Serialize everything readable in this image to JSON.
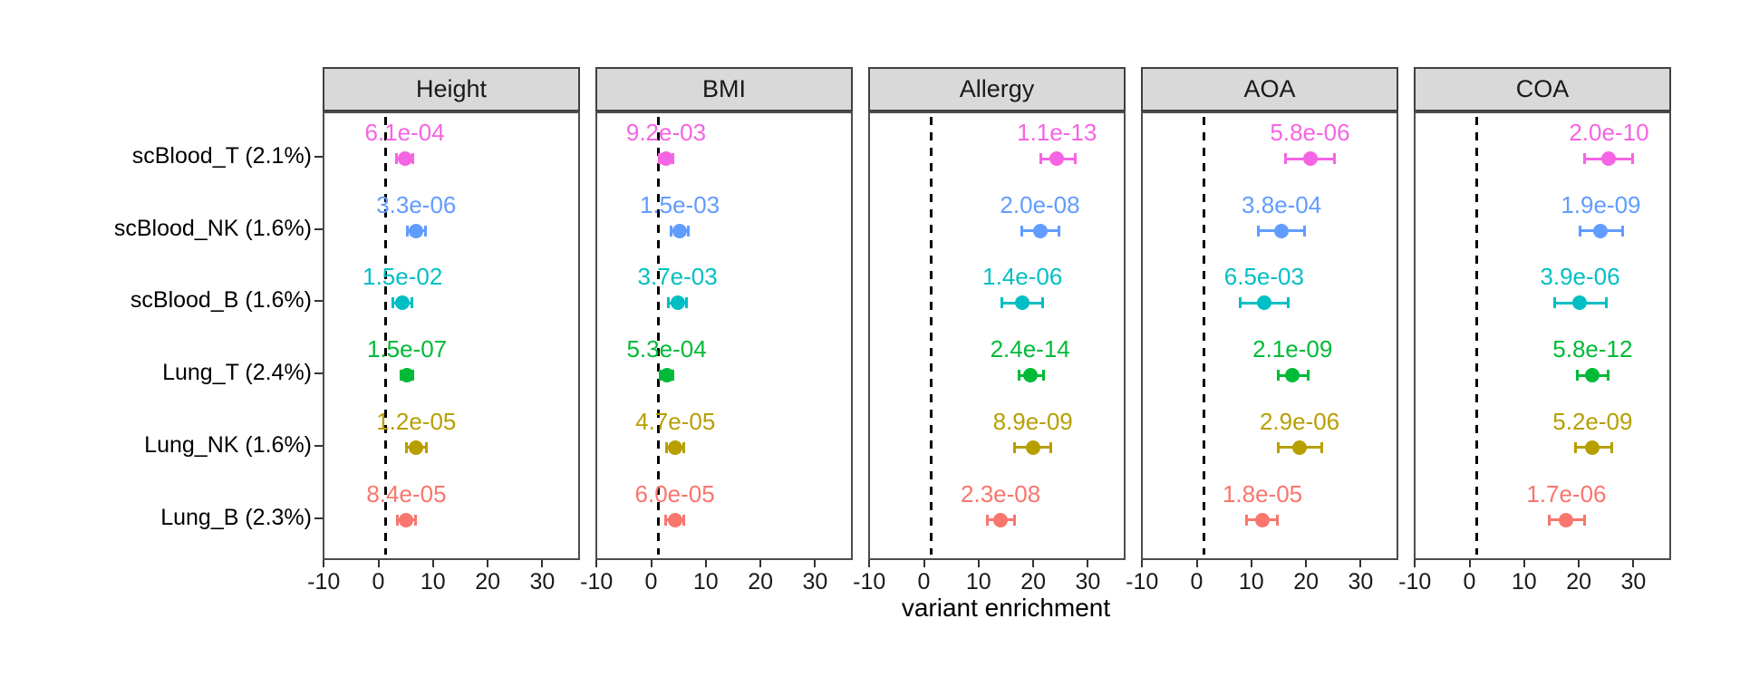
{
  "chart_data": {
    "type": "scatter",
    "title": "",
    "xlabel": "variant enrichment",
    "ylabel": "",
    "x_ticks": [
      -10,
      0,
      10,
      20,
      30
    ],
    "x_range": [
      -10.2,
      36.9
    ],
    "baseline_x": 1,
    "grid": false,
    "legend_position": "none",
    "facets": [
      "Height",
      "BMI",
      "Allergy",
      "AOA",
      "COA"
    ],
    "rows": [
      {
        "label": "scBlood_T (2.1%)",
        "color": "#F564E3"
      },
      {
        "label": "scBlood_NK (1.6%)",
        "color": "#619CFF"
      },
      {
        "label": "scBlood_B (1.6%)",
        "color": "#00BFC4"
      },
      {
        "label": "Lung_T (2.4%)",
        "color": "#00BA38"
      },
      {
        "label": "Lung_NK (1.6%)",
        "color": "#B79F00"
      },
      {
        "label": "Lung_B (2.3%)",
        "color": "#F8766D"
      }
    ],
    "panels": [
      {
        "title": "Height",
        "points": [
          {
            "est": 4.5,
            "lo": 3.0,
            "hi": 6.0,
            "pvalue": "6.1e-04"
          },
          {
            "est": 6.6,
            "lo": 4.9,
            "hi": 8.3,
            "pvalue": "3.3e-06"
          },
          {
            "est": 4.1,
            "lo": 2.4,
            "hi": 5.8,
            "pvalue": "1.5e-02"
          },
          {
            "est": 4.9,
            "lo": 3.8,
            "hi": 6.0,
            "pvalue": "1.5e-07"
          },
          {
            "est": 6.6,
            "lo": 4.8,
            "hi": 8.4,
            "pvalue": "1.2e-05"
          },
          {
            "est": 4.8,
            "lo": 3.2,
            "hi": 6.4,
            "pvalue": "8.4e-05"
          }
        ]
      },
      {
        "title": "BMI",
        "points": [
          {
            "est": 2.4,
            "lo": 1.2,
            "hi": 3.6,
            "pvalue": "9.2e-03"
          },
          {
            "est": 4.9,
            "lo": 3.3,
            "hi": 6.5,
            "pvalue": "1.5e-03"
          },
          {
            "est": 4.5,
            "lo": 2.8,
            "hi": 6.2,
            "pvalue": "3.7e-03"
          },
          {
            "est": 2.5,
            "lo": 1.4,
            "hi": 3.6,
            "pvalue": "5.3e-04"
          },
          {
            "est": 4.1,
            "lo": 2.5,
            "hi": 5.7,
            "pvalue": "4.7e-05"
          },
          {
            "est": 4.0,
            "lo": 2.4,
            "hi": 5.6,
            "pvalue": "6.0e-05"
          }
        ]
      },
      {
        "title": "Allergy",
        "points": [
          {
            "est": 24.0,
            "lo": 21.0,
            "hi": 27.3,
            "pvalue": "1.1e-13"
          },
          {
            "est": 20.9,
            "lo": 17.5,
            "hi": 24.4,
            "pvalue": "2.0e-08"
          },
          {
            "est": 17.7,
            "lo": 14.0,
            "hi": 21.4,
            "pvalue": "1.4e-06"
          },
          {
            "est": 19.1,
            "lo": 17.1,
            "hi": 21.5,
            "pvalue": "2.4e-14"
          },
          {
            "est": 19.6,
            "lo": 16.3,
            "hi": 22.9,
            "pvalue": "8.9e-09"
          },
          {
            "est": 13.7,
            "lo": 11.2,
            "hi": 16.2,
            "pvalue": "2.3e-08"
          }
        ]
      },
      {
        "title": "AOA",
        "points": [
          {
            "est": 20.4,
            "lo": 16.0,
            "hi": 24.8,
            "pvalue": "5.8e-06"
          },
          {
            "est": 15.2,
            "lo": 10.9,
            "hi": 19.4,
            "pvalue": "3.8e-04"
          },
          {
            "est": 12.0,
            "lo": 7.7,
            "hi": 16.5,
            "pvalue": "6.5e-03"
          },
          {
            "est": 17.2,
            "lo": 14.6,
            "hi": 20.0,
            "pvalue": "2.1e-09"
          },
          {
            "est": 18.5,
            "lo": 14.6,
            "hi": 22.5,
            "pvalue": "2.9e-06"
          },
          {
            "est": 11.7,
            "lo": 8.8,
            "hi": 14.5,
            "pvalue": "1.8e-05"
          }
        ]
      },
      {
        "title": "COA",
        "points": [
          {
            "est": 25.2,
            "lo": 20.8,
            "hi": 29.6,
            "pvalue": "2.0e-10"
          },
          {
            "est": 23.7,
            "lo": 19.9,
            "hi": 27.7,
            "pvalue": "1.9e-09"
          },
          {
            "est": 19.9,
            "lo": 15.2,
            "hi": 24.7,
            "pvalue": "3.9e-06"
          },
          {
            "est": 22.2,
            "lo": 19.4,
            "hi": 25.1,
            "pvalue": "5.8e-12"
          },
          {
            "est": 22.2,
            "lo": 19.0,
            "hi": 25.7,
            "pvalue": "5.2e-09"
          },
          {
            "est": 17.4,
            "lo": 14.3,
            "hi": 20.7,
            "pvalue": "1.7e-06"
          }
        ]
      }
    ],
    "colors": {
      "strip_background": "#d9d9d9",
      "panel_border": "#4d4d4d",
      "baseline_dash": "#000000",
      "background": "#ffffff",
      "axis_text": "#1a1a1a"
    }
  }
}
